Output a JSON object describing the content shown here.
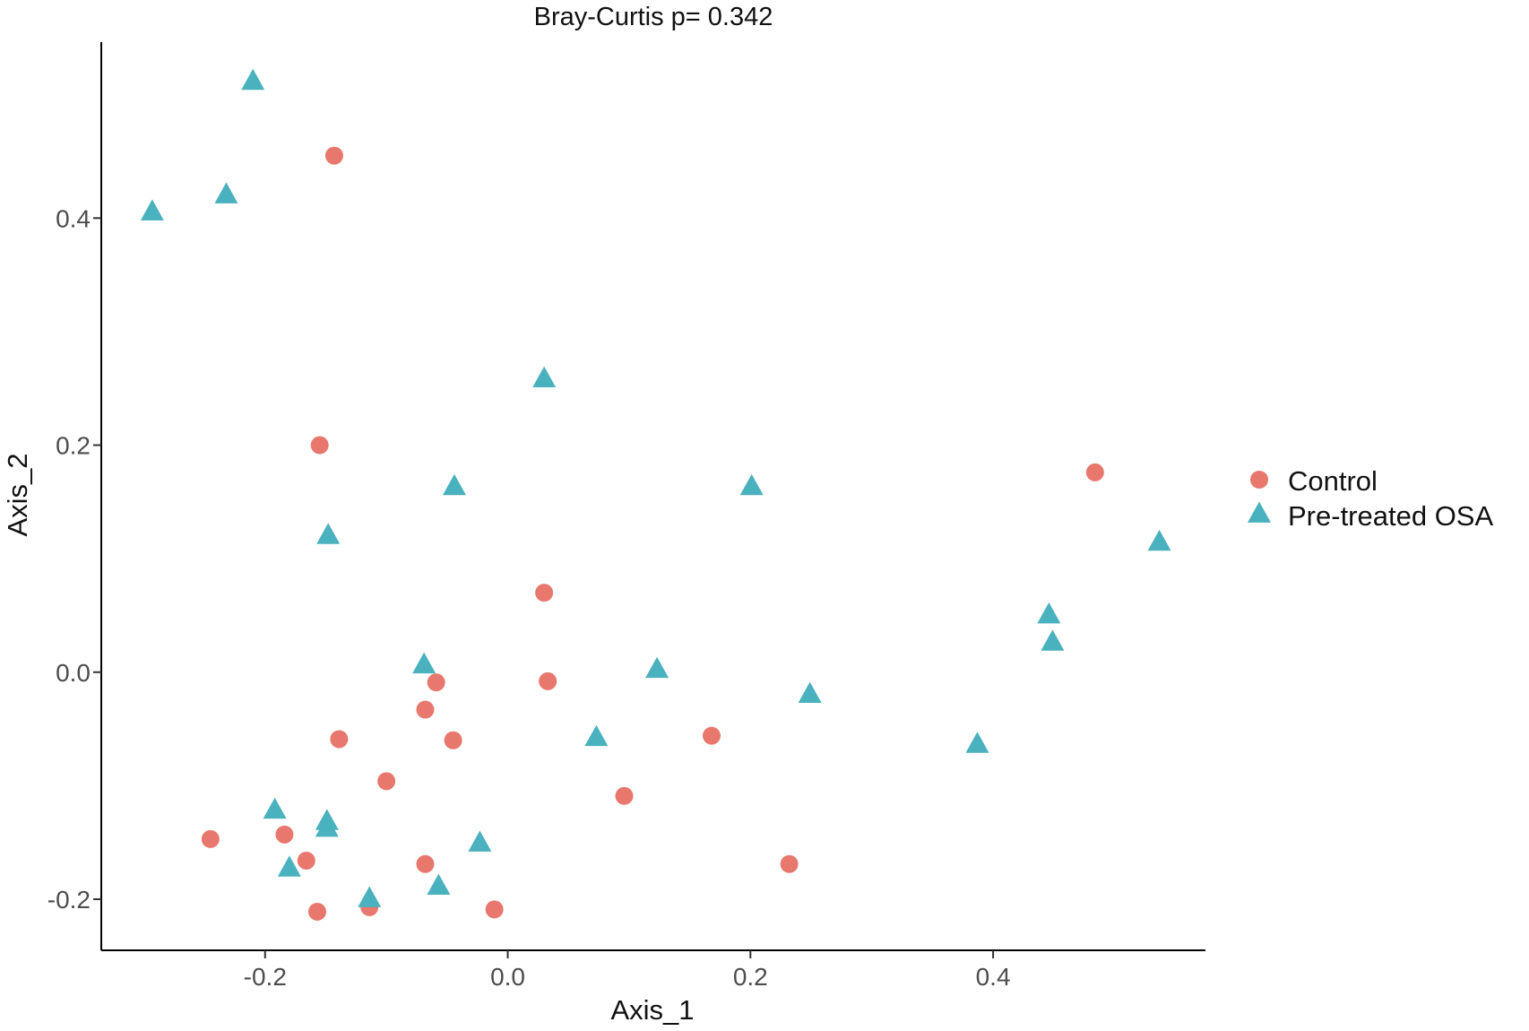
{
  "chart_data": {
    "type": "scatter",
    "title": "Bray-Curtis  p= 0.342",
    "xlabel": "Axis_1",
    "ylabel": "Axis_2",
    "xlim": [
      -0.335,
      0.575
    ],
    "ylim": [
      -0.245,
      0.555
    ],
    "grid": false,
    "legend_position": "right",
    "x_ticks": [
      -0.2,
      0.0,
      0.2,
      0.4
    ],
    "x_tick_labels": [
      "-0.2",
      "0.0",
      "0.2",
      "0.4"
    ],
    "y_ticks": [
      -0.2,
      0.0,
      0.2,
      0.4
    ],
    "y_tick_labels": [
      "-0.2",
      "0.0",
      "0.2",
      "0.4"
    ],
    "series": [
      {
        "name": "Control",
        "shape": "circle",
        "color": "#E8786E",
        "points": [
          {
            "x": -0.143,
            "y": 0.455
          },
          {
            "x": -0.155,
            "y": 0.2
          },
          {
            "x": 0.484,
            "y": 0.176
          },
          {
            "x": 0.03,
            "y": 0.07
          },
          {
            "x": -0.059,
            "y": -0.009
          },
          {
            "x": 0.033,
            "y": -0.008
          },
          {
            "x": -0.068,
            "y": -0.033
          },
          {
            "x": -0.139,
            "y": -0.059
          },
          {
            "x": -0.045,
            "y": -0.06
          },
          {
            "x": 0.168,
            "y": -0.056
          },
          {
            "x": -0.1,
            "y": -0.096
          },
          {
            "x": 0.096,
            "y": -0.109
          },
          {
            "x": -0.245,
            "y": -0.147
          },
          {
            "x": -0.184,
            "y": -0.143
          },
          {
            "x": -0.166,
            "y": -0.166
          },
          {
            "x": -0.068,
            "y": -0.169
          },
          {
            "x": 0.232,
            "y": -0.169
          },
          {
            "x": -0.157,
            "y": -0.211
          },
          {
            "x": -0.114,
            "y": -0.207
          },
          {
            "x": -0.011,
            "y": -0.209
          }
        ]
      },
      {
        "name": "Pre-treated OSA",
        "shape": "triangle",
        "color": "#4AB1BE",
        "points": [
          {
            "x": -0.21,
            "y": 0.52
          },
          {
            "x": -0.232,
            "y": 0.42
          },
          {
            "x": -0.293,
            "y": 0.405
          },
          {
            "x": 0.03,
            "y": 0.258
          },
          {
            "x": -0.044,
            "y": 0.163
          },
          {
            "x": 0.201,
            "y": 0.163
          },
          {
            "x": -0.148,
            "y": 0.12
          },
          {
            "x": 0.537,
            "y": 0.114
          },
          {
            "x": 0.446,
            "y": 0.05
          },
          {
            "x": 0.449,
            "y": 0.026
          },
          {
            "x": -0.069,
            "y": 0.006
          },
          {
            "x": 0.123,
            "y": 0.002
          },
          {
            "x": 0.249,
            "y": -0.02
          },
          {
            "x": 0.073,
            "y": -0.058
          },
          {
            "x": 0.387,
            "y": -0.064
          },
          {
            "x": -0.192,
            "y": -0.122
          },
          {
            "x": -0.149,
            "y": -0.132
          },
          {
            "x": -0.149,
            "y": -0.138
          },
          {
            "x": -0.023,
            "y": -0.151
          },
          {
            "x": -0.18,
            "y": -0.173
          },
          {
            "x": -0.057,
            "y": -0.189
          },
          {
            "x": -0.114,
            "y": -0.2
          }
        ]
      }
    ]
  }
}
